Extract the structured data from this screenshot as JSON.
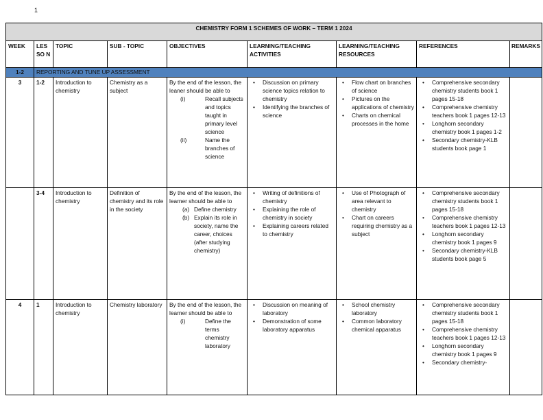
{
  "page_number": "1",
  "title": "CHEMISTRY FORM 1 SCHEMES OF WORK – TERM 1 2024",
  "headers": [
    "WEEK",
    "LES SO N",
    "TOPIC",
    "SUB - TOPIC",
    "OBJECTIVES",
    "LEARNING/TEACHING ACTIVITIES",
    "LEARNING/TEACHING RESOURCES",
    "REFERENCES",
    "REMARKS"
  ],
  "band": {
    "week": "1-2",
    "text": "REPORTING AND TUNE UP ASSESSMENT",
    "color": "#4f81bd"
  },
  "rows": [
    {
      "week": "3",
      "lesson": "1-2",
      "topic": "Introduction to chemistry",
      "subtopic": "Chemistry as a subject",
      "objectives_intro": "By the end of the lesson, the leaner should be able to",
      "objectives": [
        {
          "label": "(i)",
          "text": "Recall subjects and topics taught in primary level science"
        },
        {
          "label": "(ii)",
          "text": "Name the branches of science"
        }
      ],
      "activities": [
        "Discussion on primary science topics relation to chemistry",
        "Identifying the branches of science"
      ],
      "resources": [
        "Flow chart on branches of science",
        "Pictures on the applications of chemistry",
        "Charts on chemical processes in the home"
      ],
      "references": [
        "Comprehensive secondary chemistry students book 1 pages 15-18",
        "Comprehensive chemistry teachers book 1 pages 12-13",
        "Longhorn secondary chemistry book 1 pages 1-2",
        "Secondary chemistry-KLB students book page 1"
      ],
      "remarks": ""
    },
    {
      "week": "",
      "lesson": "3-4",
      "topic": "Introduction to chemistry",
      "subtopic": "Definition of chemistry and its role in the society",
      "objectives_intro": "By the end of the lesson, the learner should be able to",
      "objectives": [
        {
          "label": "(a)",
          "text": "Define chemistry"
        },
        {
          "label": "(b)",
          "text": "Explain its role in society, name the career, choices (after studying chemistry)"
        }
      ],
      "activities": [
        "Writing of definitions of chemistry",
        "Explaining the role of chemistry in society",
        "Explaining careers related to chemistry"
      ],
      "resources": [
        "Use of Photograph of area relevant to chemistry",
        "Chart on careers requiring chemistry as a subject"
      ],
      "references": [
        "Comprehensive secondary chemistry students book 1 pages 15-18",
        "Comprehensive chemistry teachers book 1 pages 12-13",
        "Longhorn secondary chemistry book 1 pages 9",
        "Secondary chemistry-KLB students book page 5"
      ],
      "remarks": ""
    },
    {
      "week": "4",
      "lesson": "1",
      "topic": "Introduction to chemistry",
      "subtopic": "Chemistry laboratory",
      "objectives_intro": "By the end of the lesson, the learner should be able to",
      "objectives": [
        {
          "label": "(i)",
          "text": "Define the terms chemistry laboratory"
        }
      ],
      "activities": [
        "Discussion on meaning of laboratory",
        "Demonstration of some laboratory apparatus"
      ],
      "resources": [
        "School chemistry laboratory",
        "Common laboratory chemical apparatus"
      ],
      "references": [
        "Comprehensive secondary chemistry students book 1 pages 15-18",
        "Comprehensive chemistry teachers book 1 pages 12-13",
        "Longhorn secondary chemistry book 1 pages 9",
        "Secondary chemistry-"
      ],
      "remarks": ""
    }
  ]
}
